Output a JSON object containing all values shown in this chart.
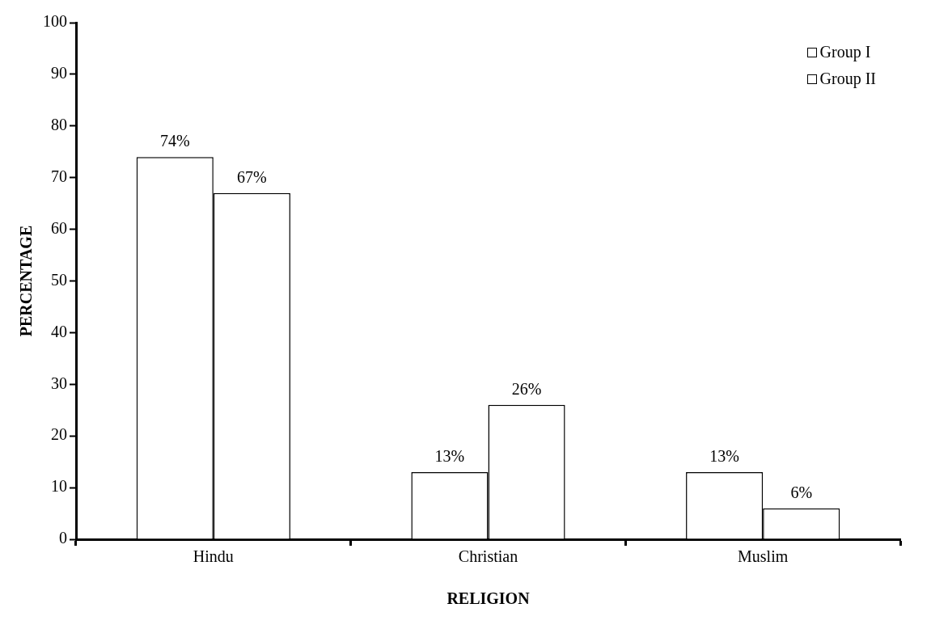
{
  "chart_data": {
    "type": "bar",
    "xlabel": "RELIGION",
    "ylabel": "PERCENTAGE",
    "categories": [
      "Hindu",
      "Christian",
      "Muslim"
    ],
    "series": [
      {
        "name": "Group I",
        "color": "#ffffff",
        "values": [
          74,
          13,
          13
        ],
        "value_labels": [
          "74%",
          "13%",
          "13%"
        ]
      },
      {
        "name": "Group II",
        "color": "#ffffff",
        "values": [
          67,
          26,
          6
        ],
        "value_labels": [
          "67%",
          "26%",
          "6%"
        ]
      }
    ],
    "ylim": [
      0,
      100
    ],
    "yticks": [
      0,
      10,
      20,
      30,
      40,
      50,
      60,
      70,
      80,
      90,
      100
    ],
    "grid": false,
    "legend": "top right"
  }
}
